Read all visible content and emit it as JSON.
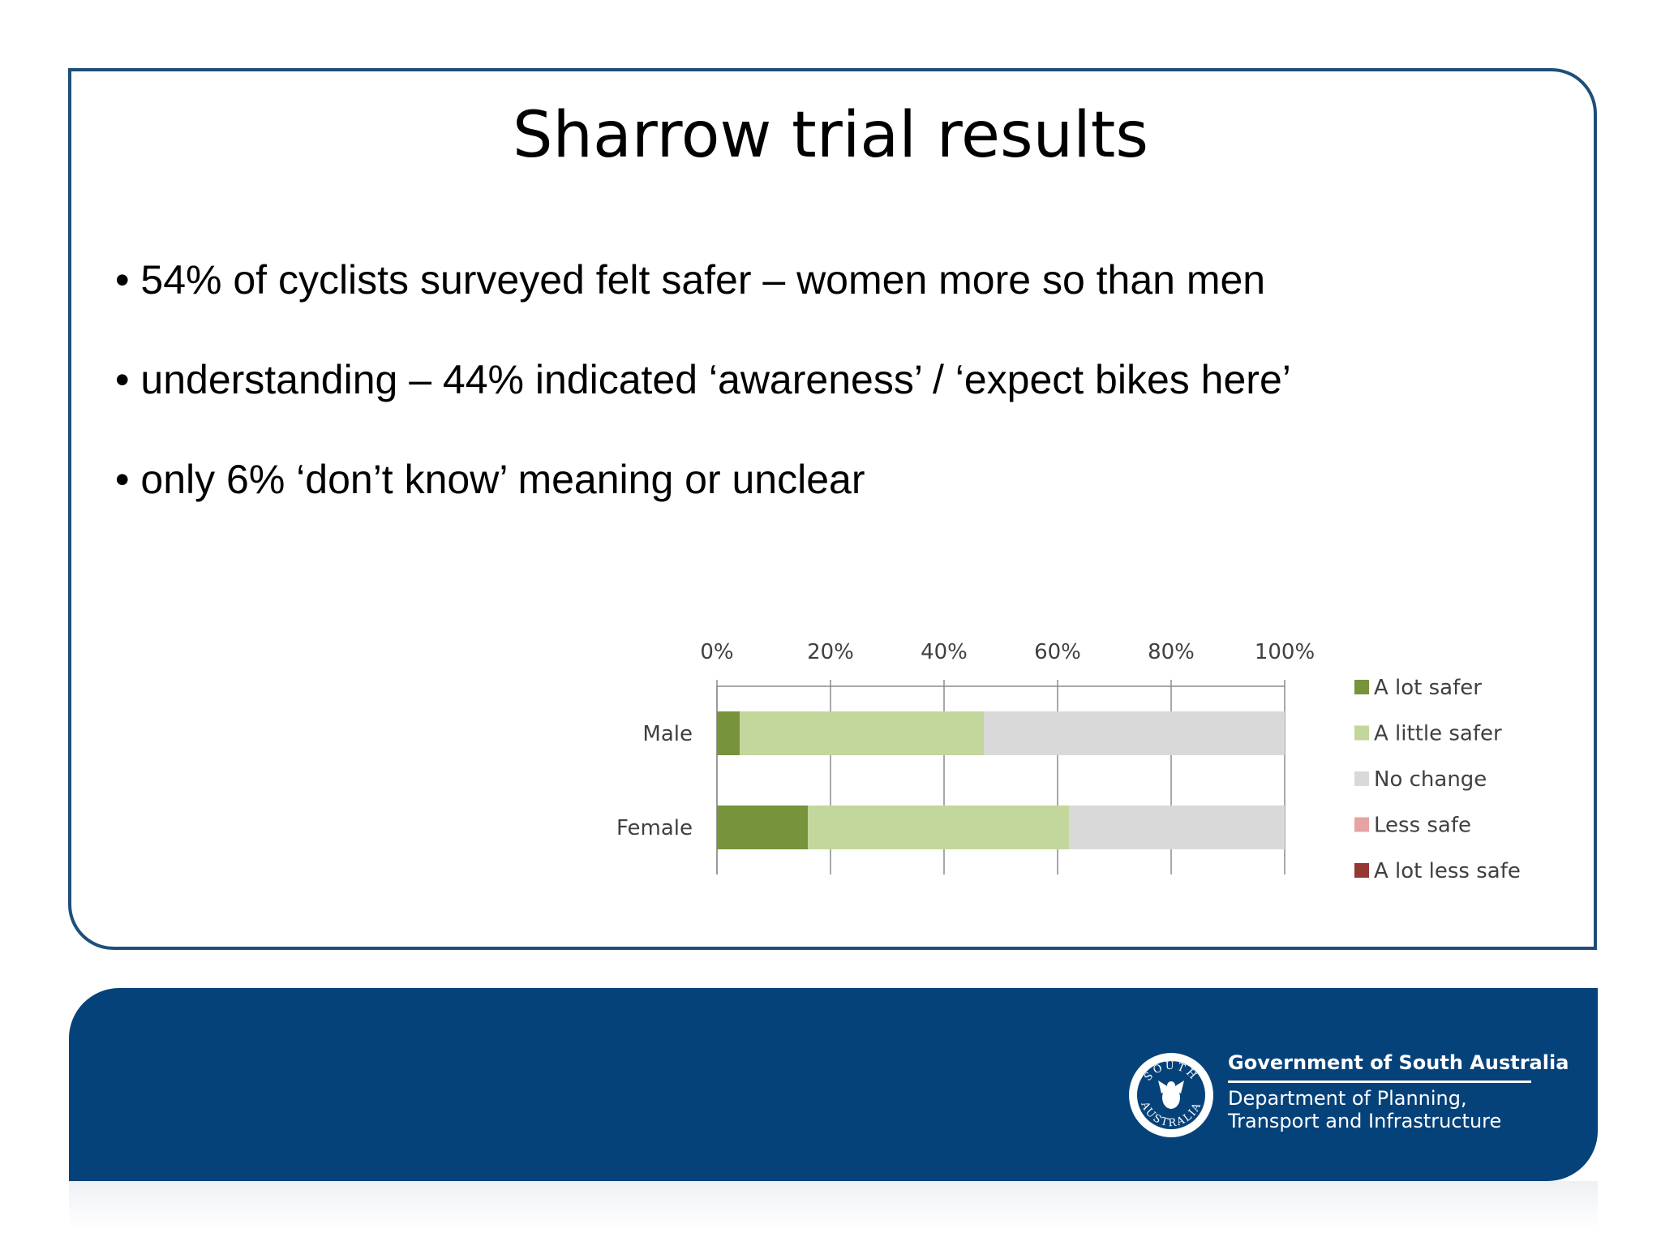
{
  "slide": {
    "title": "Sharrow trial results",
    "bullets": [
      "• 54% of cyclists surveyed felt safer – women more so than men",
      "• understanding – 44% indicated ‘awareness’ / ‘expect bikes here’",
      "• only 6% ‘don’t know’ meaning or unclear"
    ]
  },
  "footer": {
    "crest_text": [
      "SOUTH",
      "AUSTRALIA"
    ],
    "org": "Government of South Australia",
    "dept": [
      "Department of Planning,",
      "Transport and Infrastructure"
    ],
    "band_color": "#06427a"
  },
  "chart_data": {
    "type": "bar",
    "orientation": "horizontal",
    "stacked": true,
    "percent_stacked": true,
    "categories": [
      "Male",
      "Female"
    ],
    "series": [
      {
        "name": "A lot safer",
        "color": "#77933c",
        "values": [
          4,
          16
        ]
      },
      {
        "name": "A little safer",
        "color": "#c3d69b",
        "values": [
          43,
          46
        ]
      },
      {
        "name": "No change",
        "color": "#d9d9d9",
        "values": [
          53,
          38
        ]
      },
      {
        "name": "Less safe",
        "color": "#e6a3a3",
        "values": [
          0,
          0
        ]
      },
      {
        "name": "A lot less safe",
        "color": "#953735",
        "values": [
          0,
          0
        ]
      }
    ],
    "xaxis": {
      "position": "top",
      "ticks": [
        "0%",
        "20%",
        "40%",
        "60%",
        "80%",
        "100%"
      ],
      "range": [
        0,
        100
      ]
    },
    "grid": true,
    "legend": "right"
  }
}
